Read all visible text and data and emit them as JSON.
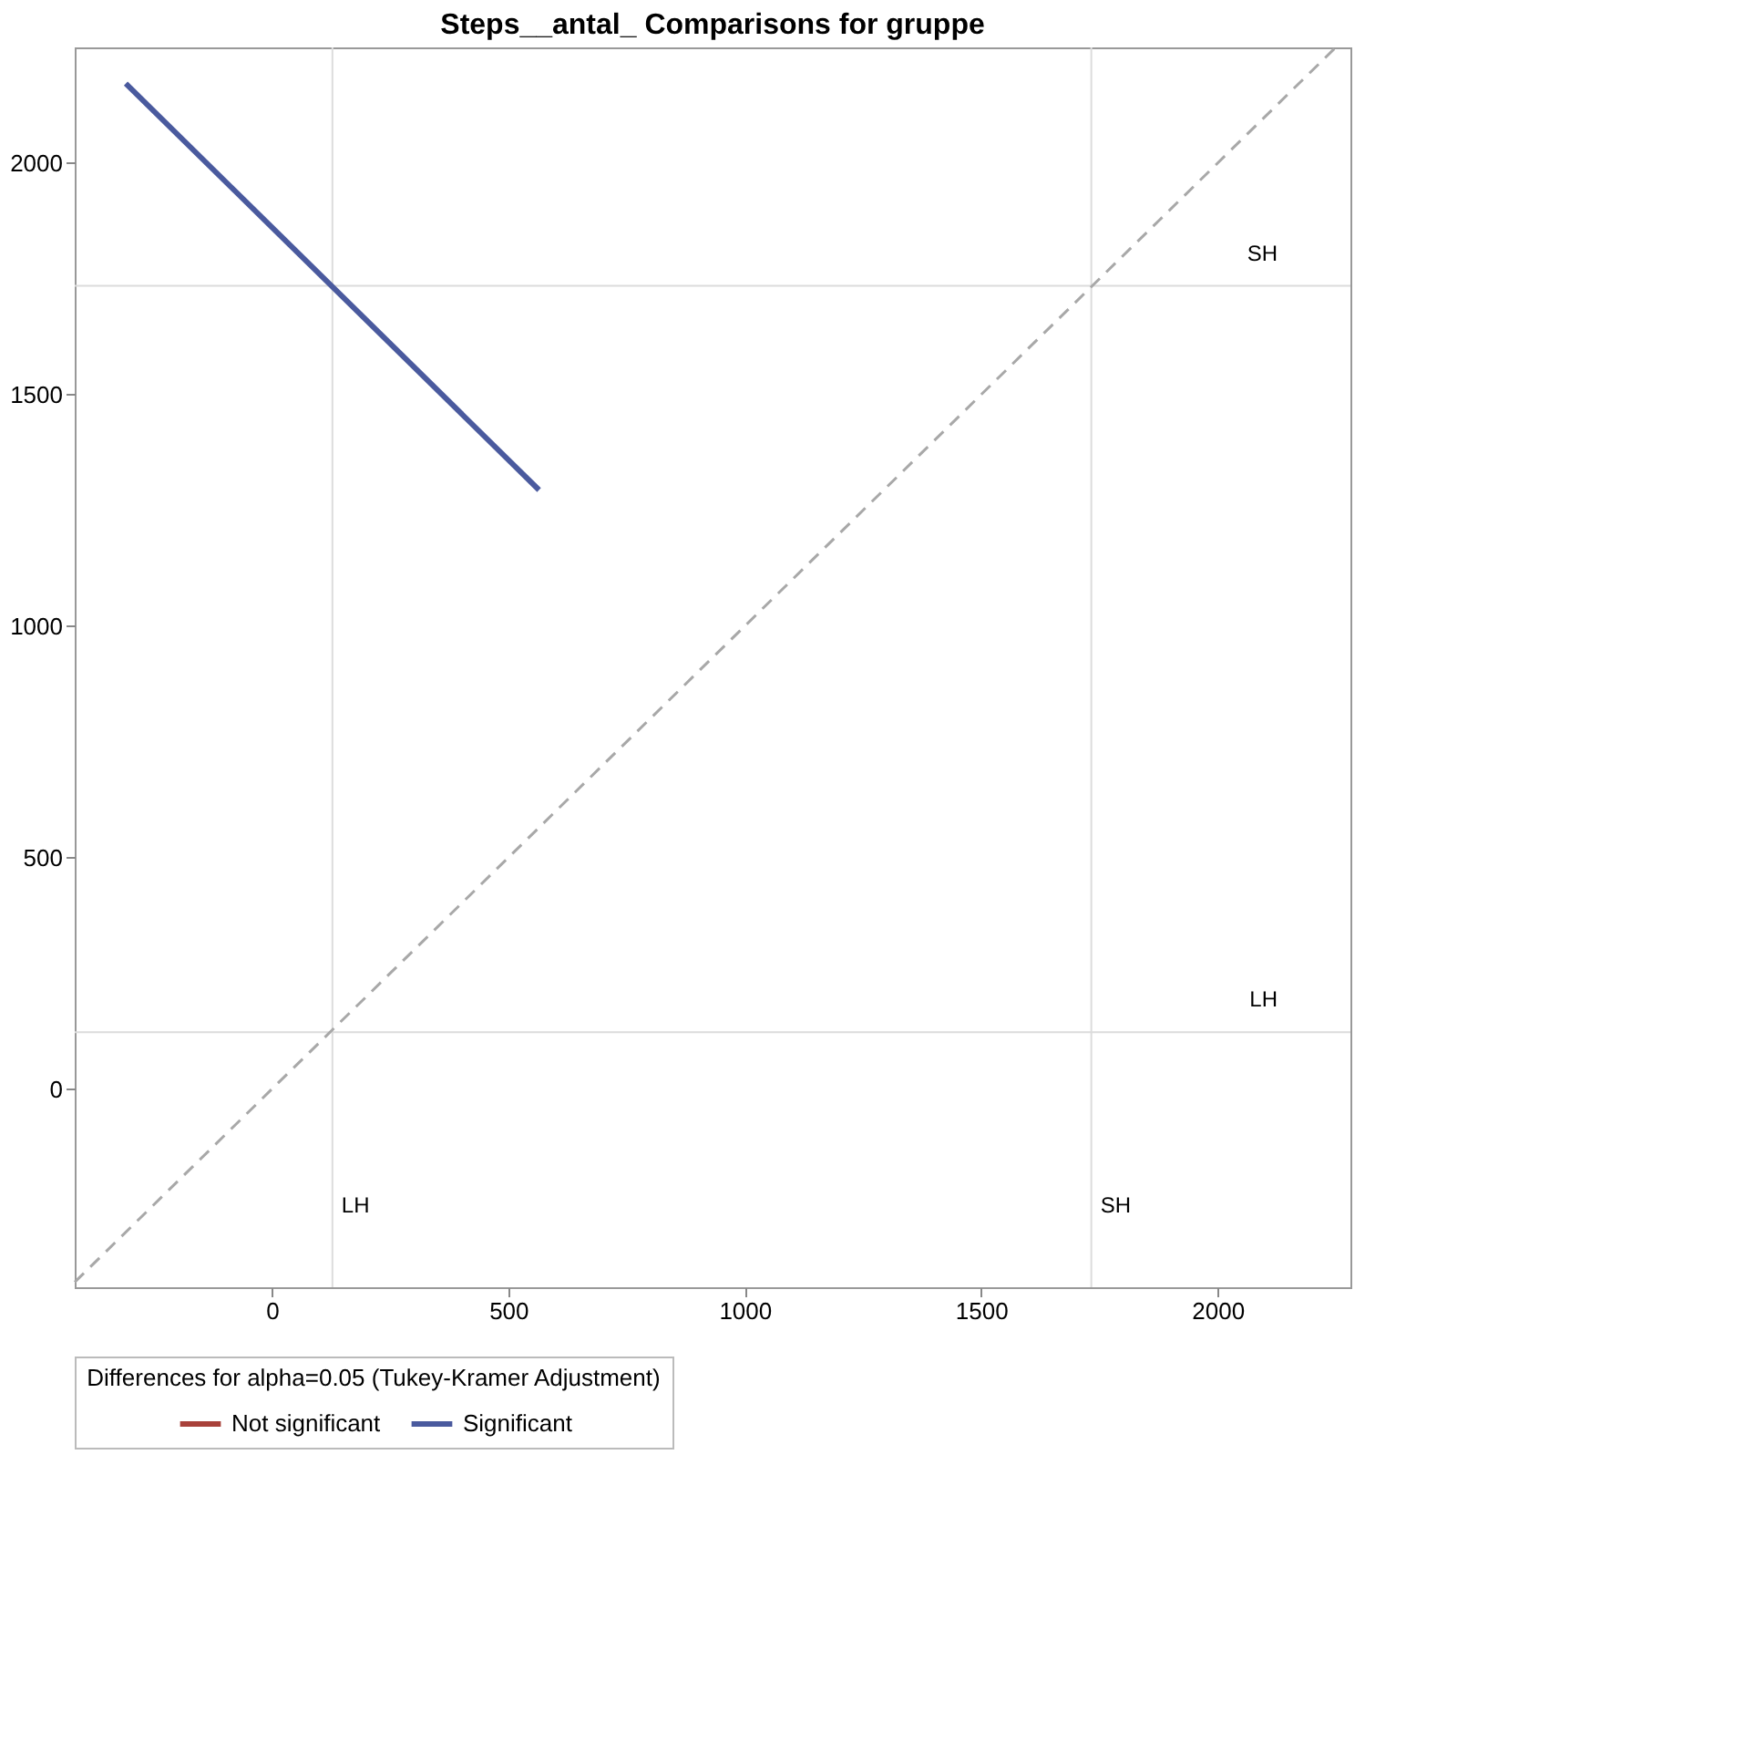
{
  "chart_data": {
    "type": "line",
    "title": "Steps__antal_ Comparisons for gruppe",
    "legend_title": "Differences for alpha=0.05 (Tukey-Kramer Adjustment)",
    "xlim": [
      -417,
      2281
    ],
    "ylim": [
      -428,
      2250
    ],
    "xticks": [
      0,
      500,
      1000,
      1500,
      2000
    ],
    "yticks": [
      0,
      500,
      1000,
      1500,
      2000
    ],
    "series": [
      {
        "name": "Not significant",
        "color": "#a8413a"
      },
      {
        "name": "Significant",
        "color": "#4a5a9e",
        "x": [
          -309,
          565
        ],
        "values": [
          2172,
          1294
        ]
      },
      {
        "color": "#a8a8a8",
        "line_style": "dashed",
        "x": [
          -417,
          2250
        ],
        "values": [
          -417,
          2250
        ]
      }
    ],
    "ref_lines": [
      {
        "axis": "x",
        "value": 128,
        "label": "LH",
        "color": "#dcdcdc"
      },
      {
        "axis": "x",
        "value": 1733,
        "label": "SH",
        "color": "#dcdcdc"
      },
      {
        "axis": "y",
        "value": 123,
        "label": "LH",
        "color": "#dcdcdc"
      },
      {
        "axis": "y",
        "value": 1735,
        "label": "SH",
        "color": "#dcdcdc"
      }
    ],
    "grid": false,
    "legend": "bottom"
  }
}
